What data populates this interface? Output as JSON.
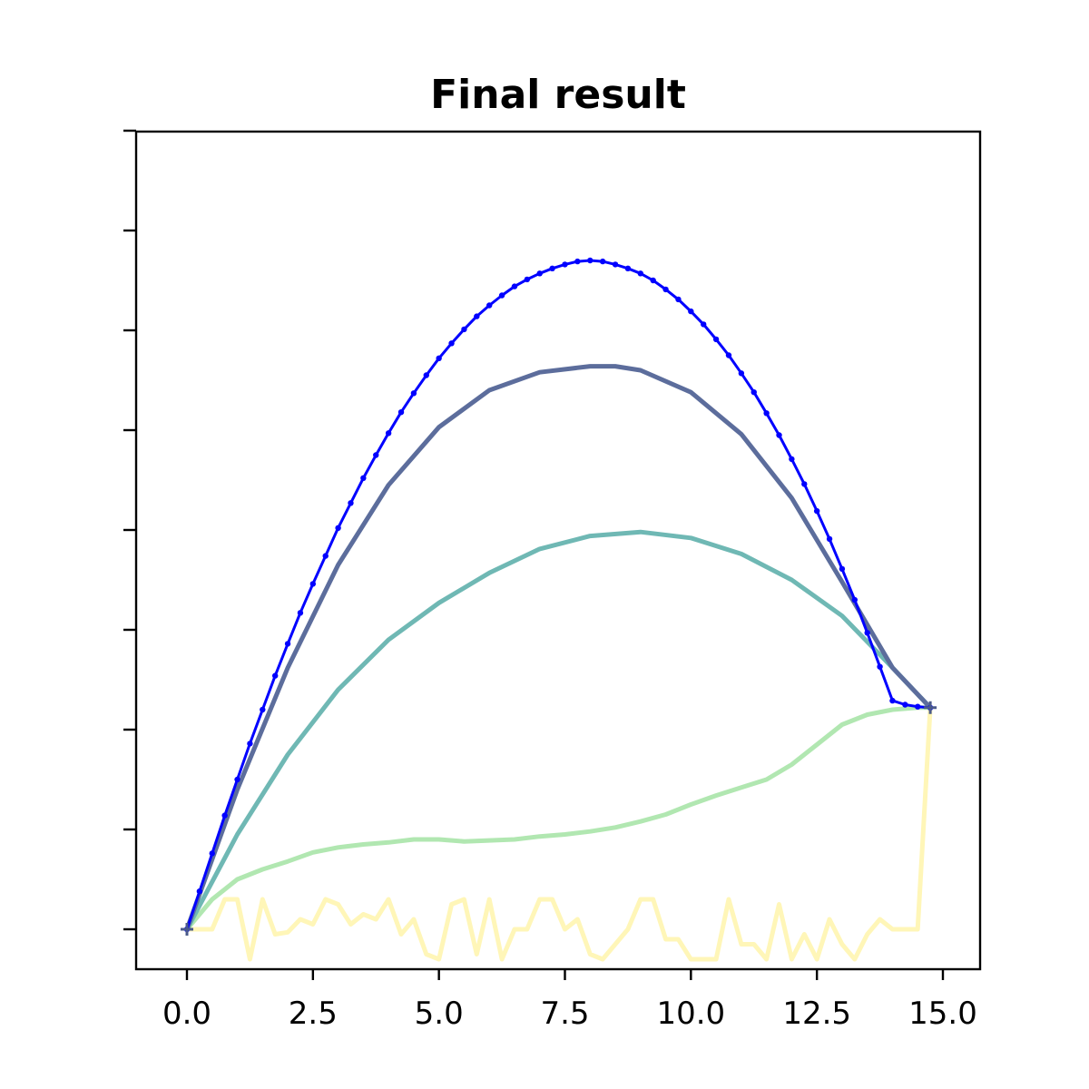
{
  "chart_data": {
    "type": "line",
    "title": "Final result",
    "xlabel": "",
    "ylabel": "",
    "xlim": [
      -1.0,
      15.7
    ],
    "ylim": [
      -0.4,
      8.0
    ],
    "x_ticks": [
      0.0,
      2.5,
      5.0,
      7.5,
      10.0,
      12.5,
      15.0
    ],
    "x_tick_labels": [
      "0.0",
      "2.5",
      "5.0",
      "7.5",
      "10.0",
      "12.5",
      "15.0"
    ],
    "y_ticks": [
      0,
      1,
      2,
      3,
      4,
      5,
      6,
      7,
      8
    ],
    "y_tick_labels": [
      "",
      "",
      "",
      "",
      "",
      "",
      "",
      "",
      ""
    ],
    "grid": false,
    "legend": "none",
    "endpoints": [
      [
        0.0,
        0.0
      ],
      [
        14.75,
        2.22
      ]
    ],
    "series": [
      {
        "color": "#fff3a0",
        "alpha": 0.75,
        "marker": false,
        "points": [
          [
            0.0,
            0.0
          ],
          [
            0.25,
            0.0
          ],
          [
            0.5,
            0.0
          ],
          [
            0.75,
            0.3
          ],
          [
            1.0,
            0.3
          ],
          [
            1.25,
            -0.3
          ],
          [
            1.5,
            0.3
          ],
          [
            1.75,
            -0.05
          ],
          [
            2.0,
            -0.03
          ],
          [
            2.25,
            0.1
          ],
          [
            2.5,
            0.05
          ],
          [
            2.75,
            0.3
          ],
          [
            3.0,
            0.25
          ],
          [
            3.25,
            0.05
          ],
          [
            3.5,
            0.15
          ],
          [
            3.75,
            0.1
          ],
          [
            4.0,
            0.3
          ],
          [
            4.25,
            -0.05
          ],
          [
            4.5,
            0.1
          ],
          [
            4.75,
            -0.25
          ],
          [
            5.0,
            -0.3
          ],
          [
            5.25,
            0.25
          ],
          [
            5.5,
            0.3
          ],
          [
            5.75,
            -0.25
          ],
          [
            6.0,
            0.3
          ],
          [
            6.25,
            -0.3
          ],
          [
            6.5,
            0.0
          ],
          [
            6.75,
            0.0
          ],
          [
            7.0,
            0.3
          ],
          [
            7.25,
            0.3
          ],
          [
            7.5,
            0.0
          ],
          [
            7.75,
            0.1
          ],
          [
            8.0,
            -0.25
          ],
          [
            8.25,
            -0.3
          ],
          [
            8.5,
            -0.15
          ],
          [
            8.75,
            0.0
          ],
          [
            9.0,
            0.3
          ],
          [
            9.25,
            0.3
          ],
          [
            9.5,
            -0.1
          ],
          [
            9.75,
            -0.1
          ],
          [
            10.0,
            -0.3
          ],
          [
            10.25,
            -0.3
          ],
          [
            10.5,
            -0.3
          ],
          [
            10.75,
            0.3
          ],
          [
            11.0,
            -0.15
          ],
          [
            11.25,
            -0.15
          ],
          [
            11.5,
            -0.3
          ],
          [
            11.75,
            0.25
          ],
          [
            12.0,
            -0.3
          ],
          [
            12.25,
            -0.05
          ],
          [
            12.5,
            -0.3
          ],
          [
            12.75,
            0.1
          ],
          [
            13.0,
            -0.15
          ],
          [
            13.25,
            -0.3
          ],
          [
            13.5,
            -0.05
          ],
          [
            13.75,
            0.1
          ],
          [
            14.0,
            0.0
          ],
          [
            14.25,
            0.0
          ],
          [
            14.5,
            0.0
          ],
          [
            14.75,
            2.22
          ]
        ]
      },
      {
        "color": "#a8e4a8",
        "alpha": 0.9,
        "marker": false,
        "points": [
          [
            0.0,
            0.0
          ],
          [
            0.5,
            0.3
          ],
          [
            1.0,
            0.5
          ],
          [
            1.5,
            0.6
          ],
          [
            2.0,
            0.68
          ],
          [
            2.5,
            0.77
          ],
          [
            3.0,
            0.82
          ],
          [
            3.5,
            0.85
          ],
          [
            4.0,
            0.87
          ],
          [
            4.5,
            0.9
          ],
          [
            5.0,
            0.9
          ],
          [
            5.5,
            0.88
          ],
          [
            6.0,
            0.89
          ],
          [
            6.5,
            0.9
          ],
          [
            7.0,
            0.93
          ],
          [
            7.5,
            0.95
          ],
          [
            8.0,
            0.98
          ],
          [
            8.5,
            1.02
          ],
          [
            9.0,
            1.08
          ],
          [
            9.5,
            1.15
          ],
          [
            10.0,
            1.25
          ],
          [
            10.5,
            1.34
          ],
          [
            11.0,
            1.42
          ],
          [
            11.5,
            1.5
          ],
          [
            12.0,
            1.65
          ],
          [
            12.5,
            1.85
          ],
          [
            13.0,
            2.05
          ],
          [
            13.5,
            2.15
          ],
          [
            14.0,
            2.2
          ],
          [
            14.5,
            2.22
          ],
          [
            14.75,
            2.22
          ]
        ]
      },
      {
        "color": "#6fb8b4",
        "alpha": 1,
        "marker": false,
        "points": [
          [
            0.0,
            0.0
          ],
          [
            1.0,
            0.95
          ],
          [
            2.0,
            1.75
          ],
          [
            3.0,
            2.4
          ],
          [
            4.0,
            2.9
          ],
          [
            5.0,
            3.27
          ],
          [
            6.0,
            3.57
          ],
          [
            7.0,
            3.81
          ],
          [
            8.0,
            3.94
          ],
          [
            9.0,
            3.98
          ],
          [
            10.0,
            3.92
          ],
          [
            11.0,
            3.76
          ],
          [
            12.0,
            3.5
          ],
          [
            13.0,
            3.14
          ],
          [
            14.0,
            2.62
          ],
          [
            14.75,
            2.22
          ]
        ]
      },
      {
        "color": "#5c6d9c",
        "alpha": 1,
        "marker": false,
        "points": [
          [
            0.0,
            0.0
          ],
          [
            1.0,
            1.4
          ],
          [
            2.0,
            2.62
          ],
          [
            3.0,
            3.65
          ],
          [
            4.0,
            4.45
          ],
          [
            5.0,
            5.03
          ],
          [
            6.0,
            5.4
          ],
          [
            7.0,
            5.58
          ],
          [
            8.0,
            5.64
          ],
          [
            8.5,
            5.64
          ],
          [
            9.0,
            5.6
          ],
          [
            10.0,
            5.38
          ],
          [
            11.0,
            4.96
          ],
          [
            12.0,
            4.32
          ],
          [
            13.0,
            3.48
          ],
          [
            14.0,
            2.62
          ],
          [
            14.75,
            2.22
          ]
        ]
      },
      {
        "color": "#0000ff",
        "alpha": 1,
        "marker": true,
        "points": [
          [
            0.0,
            0.0
          ],
          [
            0.25,
            0.38
          ],
          [
            0.5,
            0.76
          ],
          [
            0.75,
            1.14
          ],
          [
            1.0,
            1.5
          ],
          [
            1.25,
            1.86
          ],
          [
            1.5,
            2.2
          ],
          [
            1.75,
            2.54
          ],
          [
            2.0,
            2.86
          ],
          [
            2.25,
            3.17
          ],
          [
            2.5,
            3.46
          ],
          [
            2.75,
            3.74
          ],
          [
            3.0,
            4.02
          ],
          [
            3.25,
            4.27
          ],
          [
            3.5,
            4.52
          ],
          [
            3.75,
            4.75
          ],
          [
            4.0,
            4.97
          ],
          [
            4.25,
            5.18
          ],
          [
            4.5,
            5.37
          ],
          [
            4.75,
            5.55
          ],
          [
            5.0,
            5.72
          ],
          [
            5.25,
            5.87
          ],
          [
            5.5,
            6.01
          ],
          [
            5.75,
            6.14
          ],
          [
            6.0,
            6.25
          ],
          [
            6.25,
            6.35
          ],
          [
            6.5,
            6.44
          ],
          [
            6.75,
            6.51
          ],
          [
            7.0,
            6.57
          ],
          [
            7.25,
            6.62
          ],
          [
            7.5,
            6.66
          ],
          [
            7.75,
            6.69
          ],
          [
            8.0,
            6.7
          ],
          [
            8.25,
            6.69
          ],
          [
            8.5,
            6.66
          ],
          [
            8.75,
            6.62
          ],
          [
            9.0,
            6.57
          ],
          [
            9.25,
            6.5
          ],
          [
            9.5,
            6.41
          ],
          [
            9.75,
            6.31
          ],
          [
            10.0,
            6.19
          ],
          [
            10.25,
            6.06
          ],
          [
            10.5,
            5.91
          ],
          [
            10.75,
            5.75
          ],
          [
            11.0,
            5.57
          ],
          [
            11.25,
            5.38
          ],
          [
            11.5,
            5.17
          ],
          [
            11.75,
            4.95
          ],
          [
            12.0,
            4.71
          ],
          [
            12.25,
            4.46
          ],
          [
            12.5,
            4.19
          ],
          [
            12.75,
            3.91
          ],
          [
            13.0,
            3.61
          ],
          [
            13.25,
            3.3
          ],
          [
            13.5,
            2.97
          ],
          [
            13.75,
            2.63
          ],
          [
            14.0,
            2.29
          ],
          [
            14.25,
            2.25
          ],
          [
            14.5,
            2.23
          ],
          [
            14.75,
            2.22
          ]
        ]
      }
    ]
  }
}
